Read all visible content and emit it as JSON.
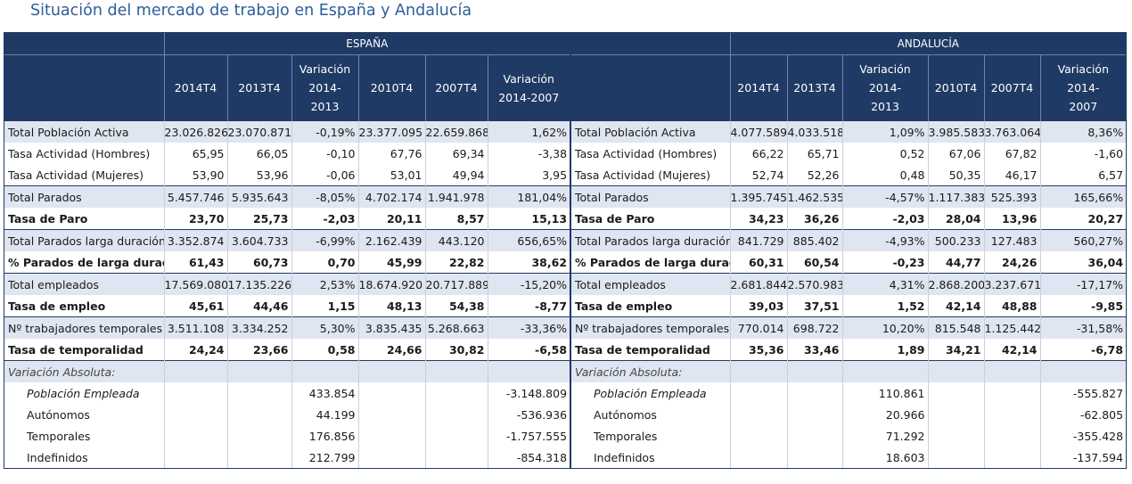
{
  "page_title": "Situación del mercado de trabajo en España y Andalucía",
  "columns": [
    "2014T4",
    "2013T4",
    "Variación 2014-2013",
    "2010T4",
    "2007T4",
    "Variación 2014-2007"
  ],
  "panels": [
    {
      "region": "ESPAÑA",
      "rows": [
        {
          "label": "Total Población Activa",
          "values": [
            "23.026.826",
            "23.070.871",
            "-0,19%",
            "23.377.095",
            "22.659.868",
            "1,62%"
          ]
        },
        {
          "label": "Tasa Actividad (Hombres)",
          "values": [
            "65,95",
            "66,05",
            "-0,10",
            "67,76",
            "69,34",
            "-3,38"
          ]
        },
        {
          "label": "Tasa Actividad (Mujeres)",
          "values": [
            "53,90",
            "53,96",
            "-0,06",
            "53,01",
            "49,94",
            "3,95"
          ]
        },
        {
          "label": "Total Parados",
          "values": [
            "5.457.746",
            "5.935.643",
            "-8,05%",
            "4.702.174",
            "1.941.978",
            "181,04%"
          ]
        },
        {
          "label": "Tasa de Paro",
          "values": [
            "23,70",
            "25,73",
            "-2,03",
            "20,11",
            "8,57",
            "15,13"
          ]
        },
        {
          "label": "Total Parados larga duración",
          "values": [
            "3.352.874",
            "3.604.733",
            "-6,99%",
            "2.162.439",
            "443.120",
            "656,65%"
          ]
        },
        {
          "label": "% Parados de larga duración",
          "values": [
            "61,43",
            "60,73",
            "0,70",
            "45,99",
            "22,82",
            "38,62"
          ]
        },
        {
          "label": "Total empleados",
          "values": [
            "17.569.080",
            "17.135.226",
            "2,53%",
            "18.674.920",
            "20.717.889",
            "-15,20%"
          ]
        },
        {
          "label": "Tasa de empleo",
          "values": [
            "45,61",
            "44,46",
            "1,15",
            "48,13",
            "54,38",
            "-8,77"
          ]
        },
        {
          "label": "Nº trabajadores temporales",
          "values": [
            "3.511.108",
            "3.334.252",
            "5,30%",
            "3.835.435",
            "5.268.663",
            "-33,36%"
          ]
        },
        {
          "label": "Tasa de temporalidad",
          "values": [
            "24,24",
            "23,66",
            "0,58",
            "24,66",
            "30,82",
            "-6,58"
          ]
        },
        {
          "label": "Variación Absoluta:",
          "values": [
            "",
            "",
            "",
            "",
            "",
            ""
          ]
        },
        {
          "label": "Población Empleada",
          "values": [
            "",
            "",
            "433.854",
            "",
            "",
            "-3.148.809"
          ]
        },
        {
          "label": "Autónomos",
          "values": [
            "",
            "",
            "44.199",
            "",
            "",
            "-536.936"
          ]
        },
        {
          "label": "Temporales",
          "values": [
            "",
            "",
            "176.856",
            "",
            "",
            "-1.757.555"
          ]
        },
        {
          "label": "Indefinidos",
          "values": [
            "",
            "",
            "212.799",
            "",
            "",
            "-854.318"
          ]
        }
      ]
    },
    {
      "region": "ANDALUCÍA",
      "rows": [
        {
          "label": "Total Población Activa",
          "values": [
            "4.077.589",
            "4.033.518",
            "1,09%",
            "3.985.583",
            "3.763.064",
            "8,36%"
          ]
        },
        {
          "label": "Tasa Actividad (Hombres)",
          "values": [
            "66,22",
            "65,71",
            "0,52",
            "67,06",
            "67,82",
            "-1,60"
          ]
        },
        {
          "label": "Tasa Actividad (Mujeres)",
          "values": [
            "52,74",
            "52,26",
            "0,48",
            "50,35",
            "46,17",
            "6,57"
          ]
        },
        {
          "label": "Total Parados",
          "values": [
            "1.395.745",
            "1.462.535",
            "-4,57%",
            "1.117.383",
            "525.393",
            "165,66%"
          ]
        },
        {
          "label": "Tasa de Paro",
          "values": [
            "34,23",
            "36,26",
            "-2,03",
            "28,04",
            "13,96",
            "20,27"
          ]
        },
        {
          "label": "Total Parados larga duración",
          "values": [
            "841.729",
            "885.402",
            "-4,93%",
            "500.233",
            "127.483",
            "560,27%"
          ]
        },
        {
          "label": "% Parados de larga duración",
          "values": [
            "60,31",
            "60,54",
            "-0,23",
            "44,77",
            "24,26",
            "36,04"
          ]
        },
        {
          "label": "Total empleados",
          "values": [
            "2.681.844",
            "2.570.983",
            "4,31%",
            "2.868.200",
            "3.237.671",
            "-17,17%"
          ]
        },
        {
          "label": "Tasa de empleo",
          "values": [
            "39,03",
            "37,51",
            "1,52",
            "42,14",
            "48,88",
            "-9,85"
          ]
        },
        {
          "label": "Nº trabajadores temporales",
          "values": [
            "770.014",
            "698.722",
            "10,20%",
            "815.548",
            "1.125.442",
            "-31,58%"
          ]
        },
        {
          "label": "Tasa de temporalidad",
          "values": [
            "35,36",
            "33,46",
            "1,89",
            "34,21",
            "42,14",
            "-6,78"
          ]
        },
        {
          "label": "Variación Absoluta:",
          "values": [
            "",
            "",
            "",
            "",
            "",
            ""
          ]
        },
        {
          "label": "Población Empleada",
          "values": [
            "",
            "",
            "110.861",
            "",
            "",
            "-555.827"
          ]
        },
        {
          "label": "Autónomos",
          "values": [
            "",
            "",
            "20.966",
            "",
            "",
            "-62.805"
          ]
        },
        {
          "label": "Temporales",
          "values": [
            "",
            "",
            "71.292",
            "",
            "",
            "-355.428"
          ]
        },
        {
          "label": "Indefinidos",
          "values": [
            "",
            "",
            "18.603",
            "",
            "",
            "-137.594"
          ]
        }
      ]
    }
  ]
}
